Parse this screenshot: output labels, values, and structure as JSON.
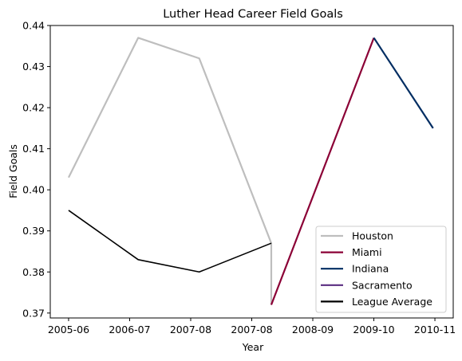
{
  "chart_data": {
    "type": "line",
    "title": "Luther Head Career Field Goals",
    "xlabel": "Year",
    "ylabel": "Field Goals",
    "x_ticks": [
      {
        "pos": 0,
        "label": "2005-06"
      },
      {
        "pos": 1,
        "label": "2006-07"
      },
      {
        "pos": 2,
        "label": "2007-08"
      },
      {
        "pos": 3,
        "label": "2007-08"
      },
      {
        "pos": 4,
        "label": "2008-09"
      },
      {
        "pos": 5,
        "label": "2009-10"
      },
      {
        "pos": 6,
        "label": "2010-11"
      }
    ],
    "xlim": [
      -0.3,
      6.3
    ],
    "ylim": [
      0.3688,
      0.44
    ],
    "y_ticks": [
      0.37,
      0.38,
      0.39,
      0.4,
      0.41,
      0.42,
      0.43,
      0.44
    ],
    "grid": false,
    "legend_position": "lower right",
    "series": [
      {
        "name": "Houston",
        "color": "#bebebe",
        "x": [
          0,
          1.14,
          2.14,
          3.32,
          3.32
        ],
        "y": [
          0.403,
          0.437,
          0.432,
          0.387,
          0.372
        ]
      },
      {
        "name": "Miami",
        "color": "#8b0036",
        "x": [
          3.32,
          5.0
        ],
        "y": [
          0.372,
          0.437
        ]
      },
      {
        "name": "Indiana",
        "color": "#002d62",
        "x": [
          5.0,
          5.97
        ],
        "y": [
          0.437,
          0.415
        ]
      },
      {
        "name": "Sacramento",
        "color": "#5a2d81",
        "x": [],
        "y": []
      },
      {
        "name": "League Average",
        "color": "#000000",
        "x": [
          0,
          1.14,
          2.14,
          3.32
        ],
        "y": [
          0.395,
          0.383,
          0.38,
          0.387
        ]
      }
    ]
  }
}
